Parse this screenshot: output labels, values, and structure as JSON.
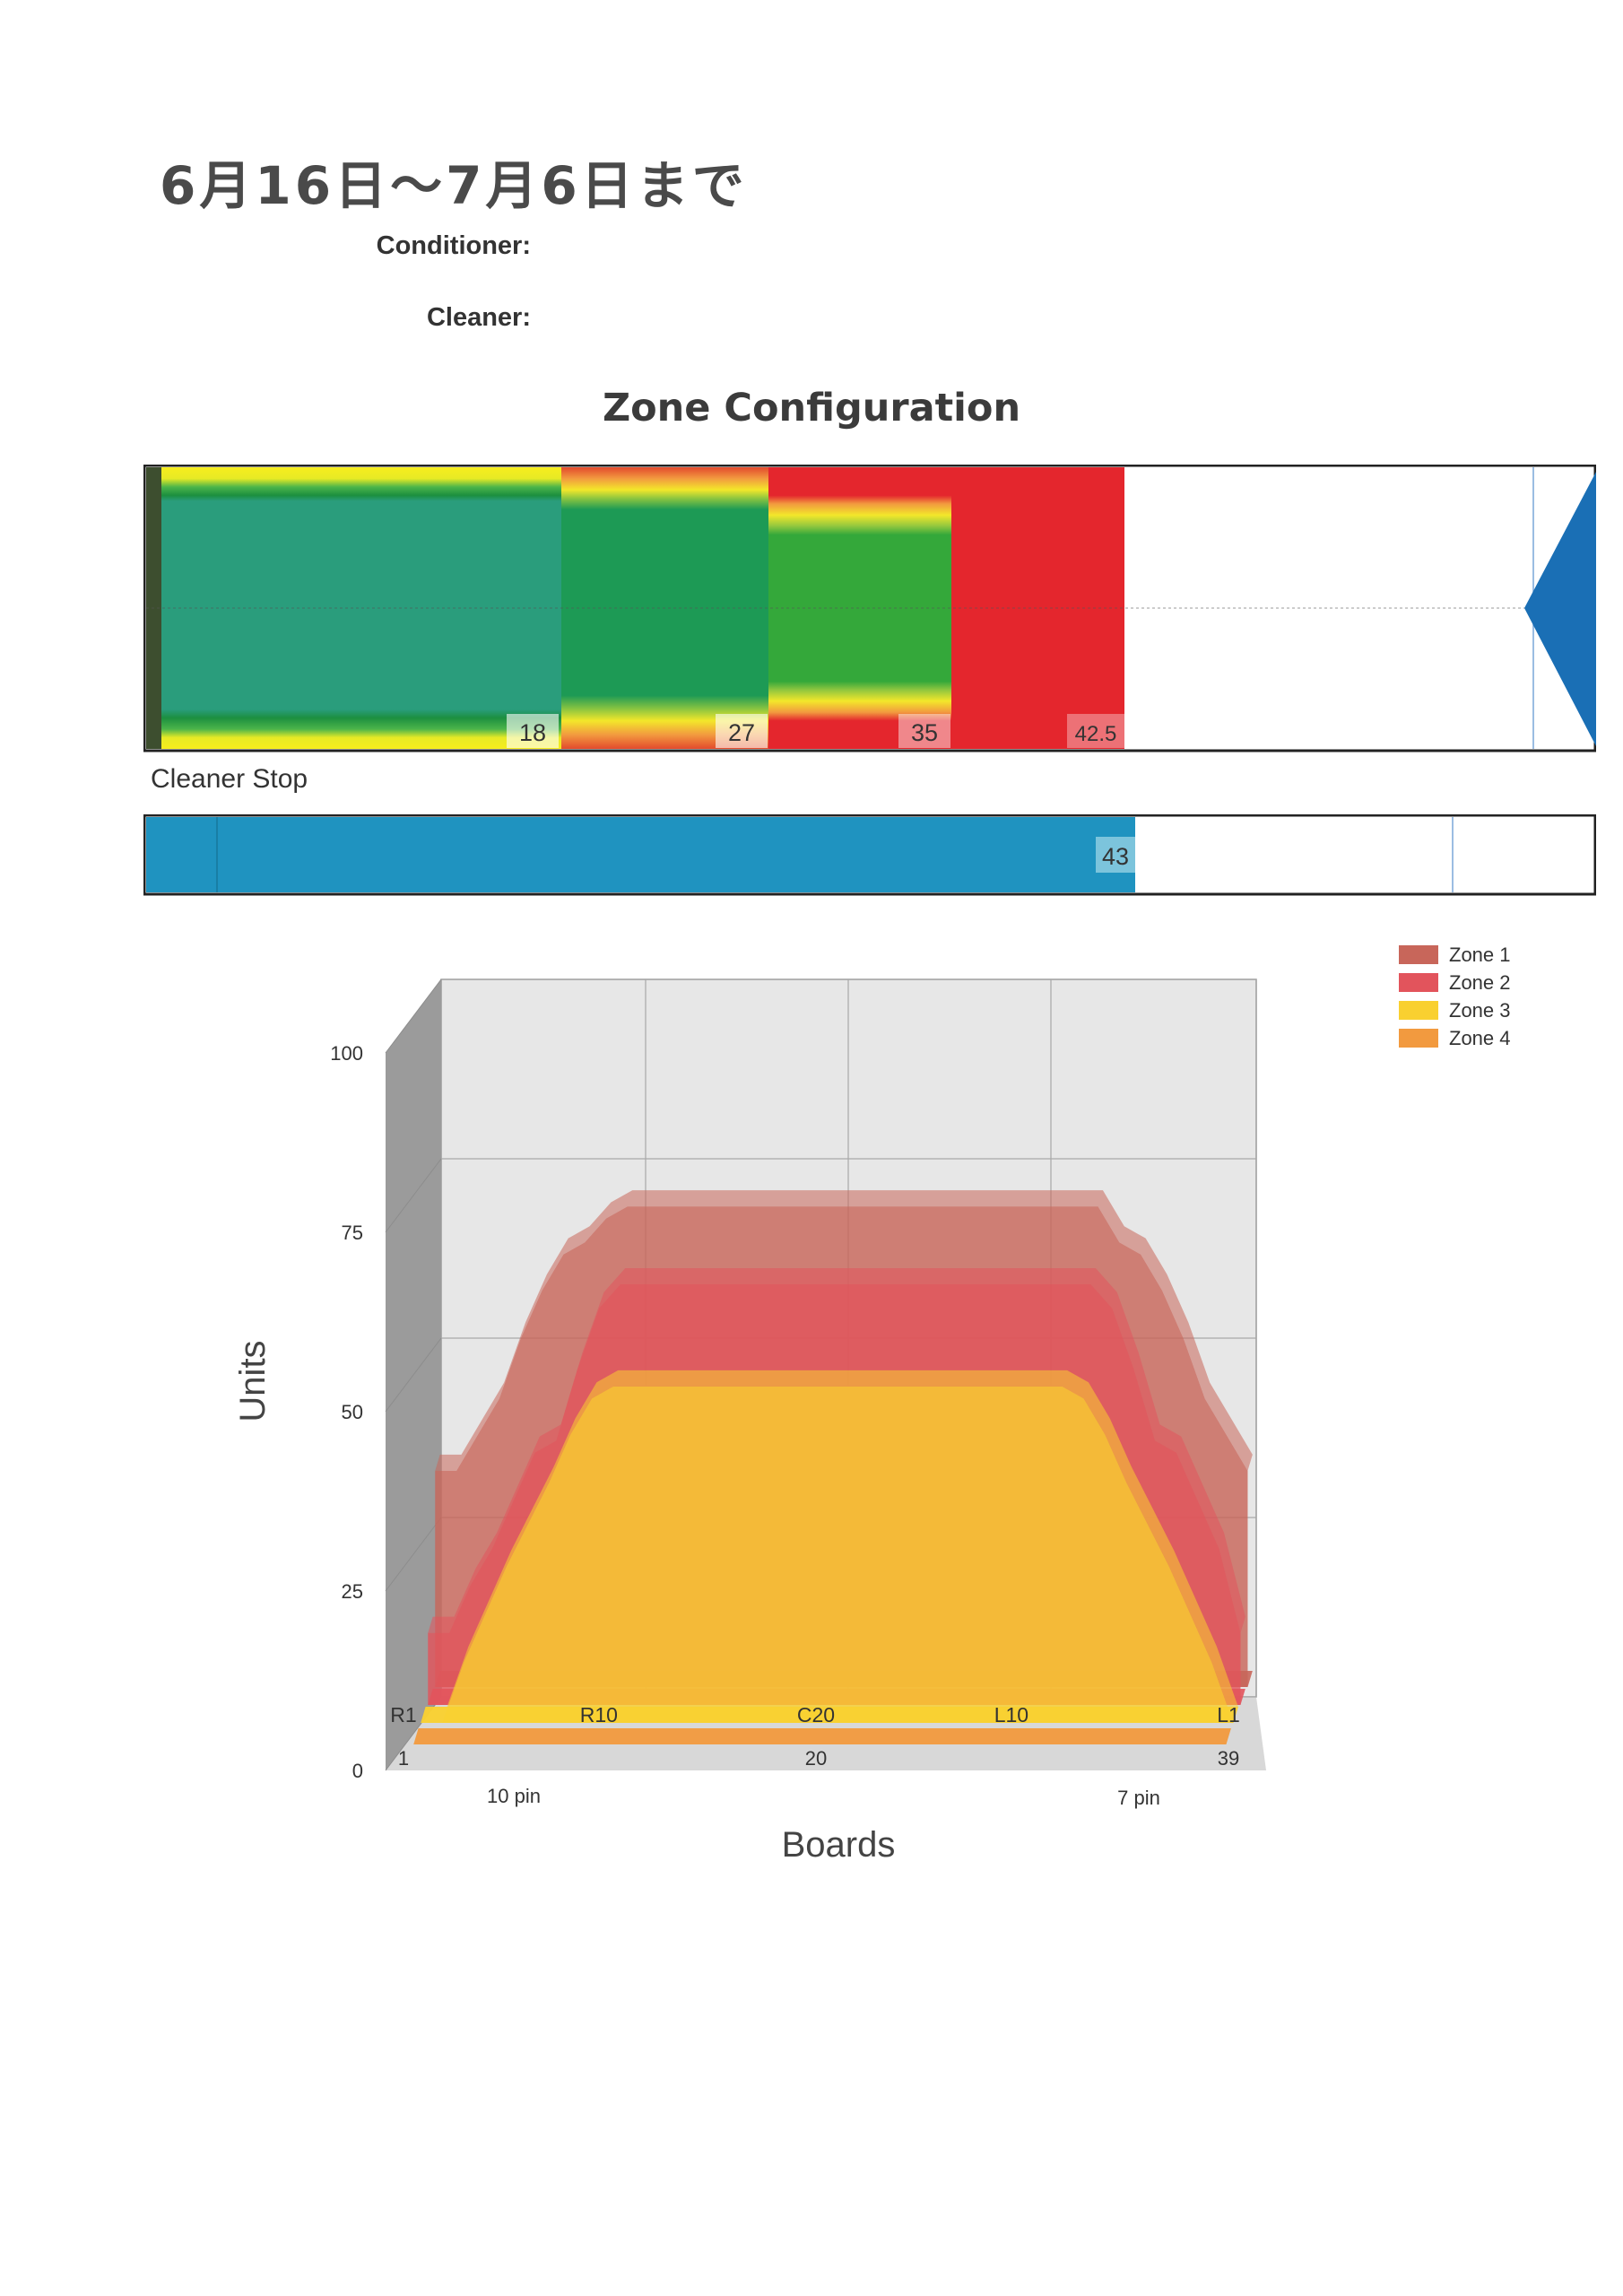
{
  "header": {
    "title": "6月16日～7月6日まで",
    "conditioner_label": "Conditioner:",
    "cleaner_label": "Cleaner:"
  },
  "zone_config": {
    "title": "Zone Configuration",
    "markers": [
      "18",
      "27",
      "35",
      "42.5"
    ],
    "colors": [
      "#2a9d7c",
      "#1d9a55",
      "#34a83a",
      "#e4262d"
    ]
  },
  "cleaner_stop": {
    "label": "Cleaner Stop",
    "value": "43",
    "color": "#1f93c0"
  },
  "chart_data": {
    "type": "area",
    "projection": "3d",
    "xlabel": "Boards",
    "ylabel": "Units",
    "ylim": [
      0,
      100
    ],
    "y_ticks": [
      0,
      25,
      50,
      75,
      100
    ],
    "x_ticks": [
      "R1",
      "R10",
      "C20",
      "L10",
      "L1"
    ],
    "x_ticks_secondary": [
      "1",
      "20",
      "39"
    ],
    "annotations": [
      "10 pin",
      "7 pin"
    ],
    "legend_position": "top-right",
    "x": [
      1,
      2,
      3,
      4,
      5,
      6,
      7,
      8,
      9,
      10,
      11,
      12,
      13,
      14,
      15,
      16,
      17,
      18,
      19,
      20,
      21,
      22,
      23,
      24,
      25,
      26,
      27,
      28,
      29,
      30,
      31,
      32,
      33,
      34,
      35,
      36,
      37,
      38,
      39
    ],
    "series": [
      {
        "name": "Zone 1",
        "color": "#c8665a",
        "values": [
          36,
          36,
          42,
          48,
          58,
          66,
          72,
          74,
          78,
          80,
          80,
          80,
          80,
          80,
          80,
          80,
          80,
          80,
          80,
          80,
          80,
          80,
          80,
          80,
          80,
          80,
          80,
          80,
          80,
          80,
          80,
          80,
          74,
          72,
          66,
          58,
          48,
          42,
          36
        ]
      },
      {
        "name": "Zone 2",
        "color": "#e2545c",
        "values": [
          12,
          12,
          20,
          26,
          34,
          42,
          44,
          56,
          66,
          70,
          70,
          70,
          70,
          70,
          70,
          70,
          70,
          70,
          70,
          70,
          70,
          70,
          70,
          70,
          70,
          70,
          70,
          70,
          70,
          70,
          70,
          70,
          66,
          56,
          44,
          42,
          34,
          26,
          12
        ]
      },
      {
        "name": "Zone 3",
        "color": "#f9d030",
        "values": [
          0,
          0,
          10,
          18,
          26,
          33,
          40,
          48,
          54,
          56,
          56,
          56,
          56,
          56,
          56,
          56,
          56,
          56,
          56,
          56,
          56,
          56,
          56,
          56,
          56,
          56,
          56,
          56,
          56,
          56,
          56,
          54,
          48,
          40,
          33,
          26,
          18,
          10,
          0
        ]
      },
      {
        "name": "Zone 4",
        "color": "#f29a3f",
        "values": [
          0,
          0,
          0,
          0,
          0,
          0,
          0,
          0,
          0,
          0,
          0,
          0,
          0,
          0,
          0,
          0,
          0,
          0,
          0,
          0,
          0,
          0,
          0,
          0,
          0,
          0,
          0,
          0,
          0,
          0,
          0,
          0,
          0,
          0,
          0,
          0,
          0,
          0,
          0
        ]
      }
    ]
  }
}
